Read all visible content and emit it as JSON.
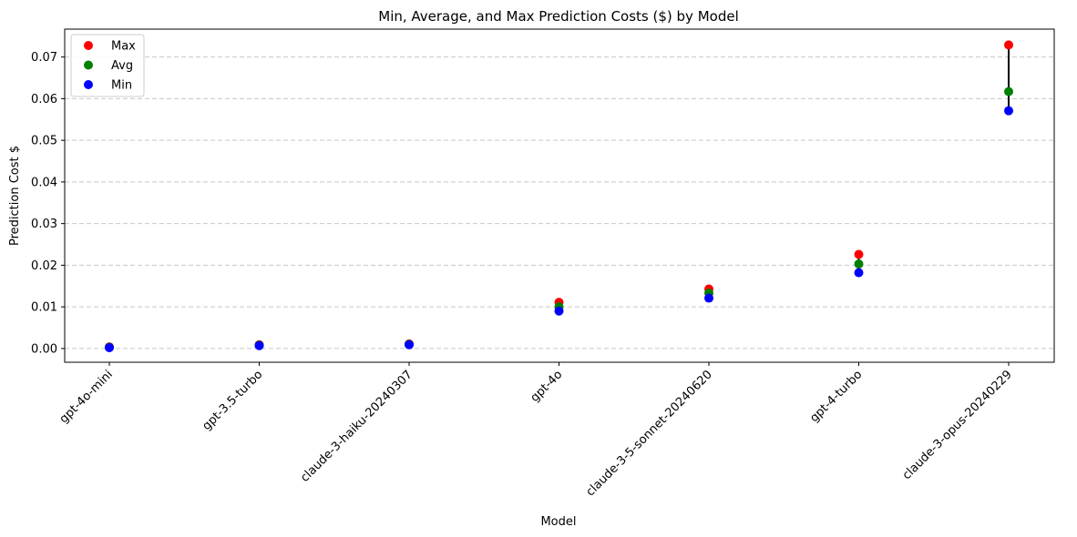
{
  "chart_data": {
    "type": "scatter",
    "title": "Min, Average, and Max Prediction Costs ($) by Model",
    "xlabel": "Model",
    "ylabel": "Prediction Cost $",
    "categories": [
      "gpt-4o-mini",
      "gpt-3.5-turbo",
      "claude-3-haiku-20240307",
      "gpt-4o",
      "claude-3-5-sonnet-20240620",
      "gpt-4-turbo",
      "claude-3-opus-20240229"
    ],
    "ylim": [
      -0.0033,
      0.0767
    ],
    "yticks": [
      0.0,
      0.01,
      0.02,
      0.03,
      0.04,
      0.05,
      0.06,
      0.07
    ],
    "ytick_labels": [
      "0.00",
      "0.01",
      "0.02",
      "0.03",
      "0.04",
      "0.05",
      "0.06",
      "0.07"
    ],
    "grid": "y-dashed",
    "legend_position": "top-left",
    "series": [
      {
        "name": "Max",
        "color": "#ff0000",
        "values": [
          0.0004,
          0.0009,
          0.0011,
          0.0111,
          0.0143,
          0.0226,
          0.0729
        ]
      },
      {
        "name": "Avg",
        "color": "#008000",
        "values": [
          0.0003,
          0.0008,
          0.001,
          0.01,
          0.0133,
          0.0203,
          0.0617
        ]
      },
      {
        "name": "Min",
        "color": "#0000ff",
        "values": [
          0.0002,
          0.0007,
          0.0009,
          0.009,
          0.0121,
          0.0182,
          0.0571
        ]
      }
    ]
  }
}
